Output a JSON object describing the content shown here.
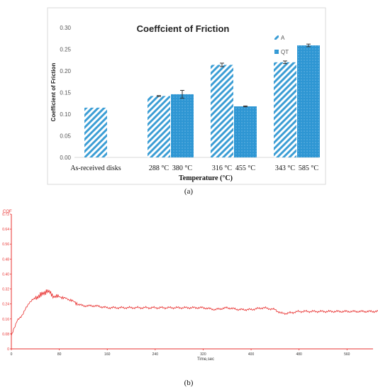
{
  "chart_data": [
    {
      "type": "bar",
      "title": "Coeffcient of Friction",
      "ylabel": "Coefficient of Friction",
      "xlabel": "Temperature (°C)",
      "ylim": [
        0,
        0.3
      ],
      "yticks": [
        "0.00",
        "0.05",
        "0.10",
        "0.15",
        "0.20",
        "0.25",
        "0.30"
      ],
      "grid": false,
      "legend_position": "top-right",
      "group_labels": [
        "As-received disks"
      ],
      "bars": [
        {
          "label": "",
          "series": "A",
          "group": 0,
          "value": 0.115,
          "error": 0.0
        },
        {
          "label": "288 °C",
          "series": "A",
          "group": 1,
          "value": 0.142,
          "error": 0.001
        },
        {
          "label": "380 °C",
          "series": "QT",
          "group": 1,
          "value": 0.146,
          "error": 0.009
        },
        {
          "label": "316 °C",
          "series": "A",
          "group": 2,
          "value": 0.214,
          "error": 0.004
        },
        {
          "label": "455 °C",
          "series": "QT",
          "group": 2,
          "value": 0.118,
          "error": 0.001
        },
        {
          "label": "343 °C",
          "series": "A",
          "group": 3,
          "value": 0.22,
          "error": 0.003
        },
        {
          "label": "585 °C",
          "series": "QT",
          "group": 3,
          "value": 0.259,
          "error": 0.003
        }
      ],
      "series": [
        {
          "name": "A",
          "pattern": "diagonal-hatch",
          "color": "#3C9ED5"
        },
        {
          "name": "QT",
          "pattern": "dotted-solid",
          "color": "#2E96D3"
        }
      ],
      "caption": "(a)"
    },
    {
      "type": "line",
      "ylabel": "COF",
      "xlabel": "Time,sec",
      "xlim": [
        0,
        620
      ],
      "ylim": [
        0,
        0.72
      ],
      "xticks": [
        "0",
        "80",
        "160",
        "240",
        "320",
        "400",
        "480",
        "560"
      ],
      "yticks": [
        "0",
        "0.08",
        "0.16",
        "0.24",
        "0.32",
        "0.40",
        "0.48",
        "0.56",
        "0.64",
        "0.72"
      ],
      "line_color": "#E8302F",
      "axis_color": "#E8302F",
      "series": [
        {
          "x": [
            0,
            2,
            4,
            6,
            10,
            15,
            20,
            25,
            30,
            40,
            50,
            60,
            65,
            70,
            80,
            90,
            100,
            110,
            120,
            140,
            160,
            180,
            200,
            220,
            240,
            260,
            280,
            300,
            320,
            340,
            360,
            380,
            400,
            420,
            440,
            450,
            460,
            480,
            500,
            520,
            540,
            560,
            580,
            600,
            620
          ],
          "y": [
            0.07,
            0.09,
            0.11,
            0.12,
            0.15,
            0.17,
            0.19,
            0.22,
            0.25,
            0.27,
            0.29,
            0.31,
            0.3,
            0.28,
            0.28,
            0.27,
            0.26,
            0.24,
            0.23,
            0.23,
            0.22,
            0.22,
            0.22,
            0.22,
            0.22,
            0.22,
            0.22,
            0.22,
            0.22,
            0.21,
            0.22,
            0.21,
            0.21,
            0.22,
            0.21,
            0.19,
            0.19,
            0.2,
            0.2,
            0.2,
            0.2,
            0.2,
            0.2,
            0.2,
            0.2
          ]
        }
      ],
      "caption": "(b)"
    }
  ]
}
